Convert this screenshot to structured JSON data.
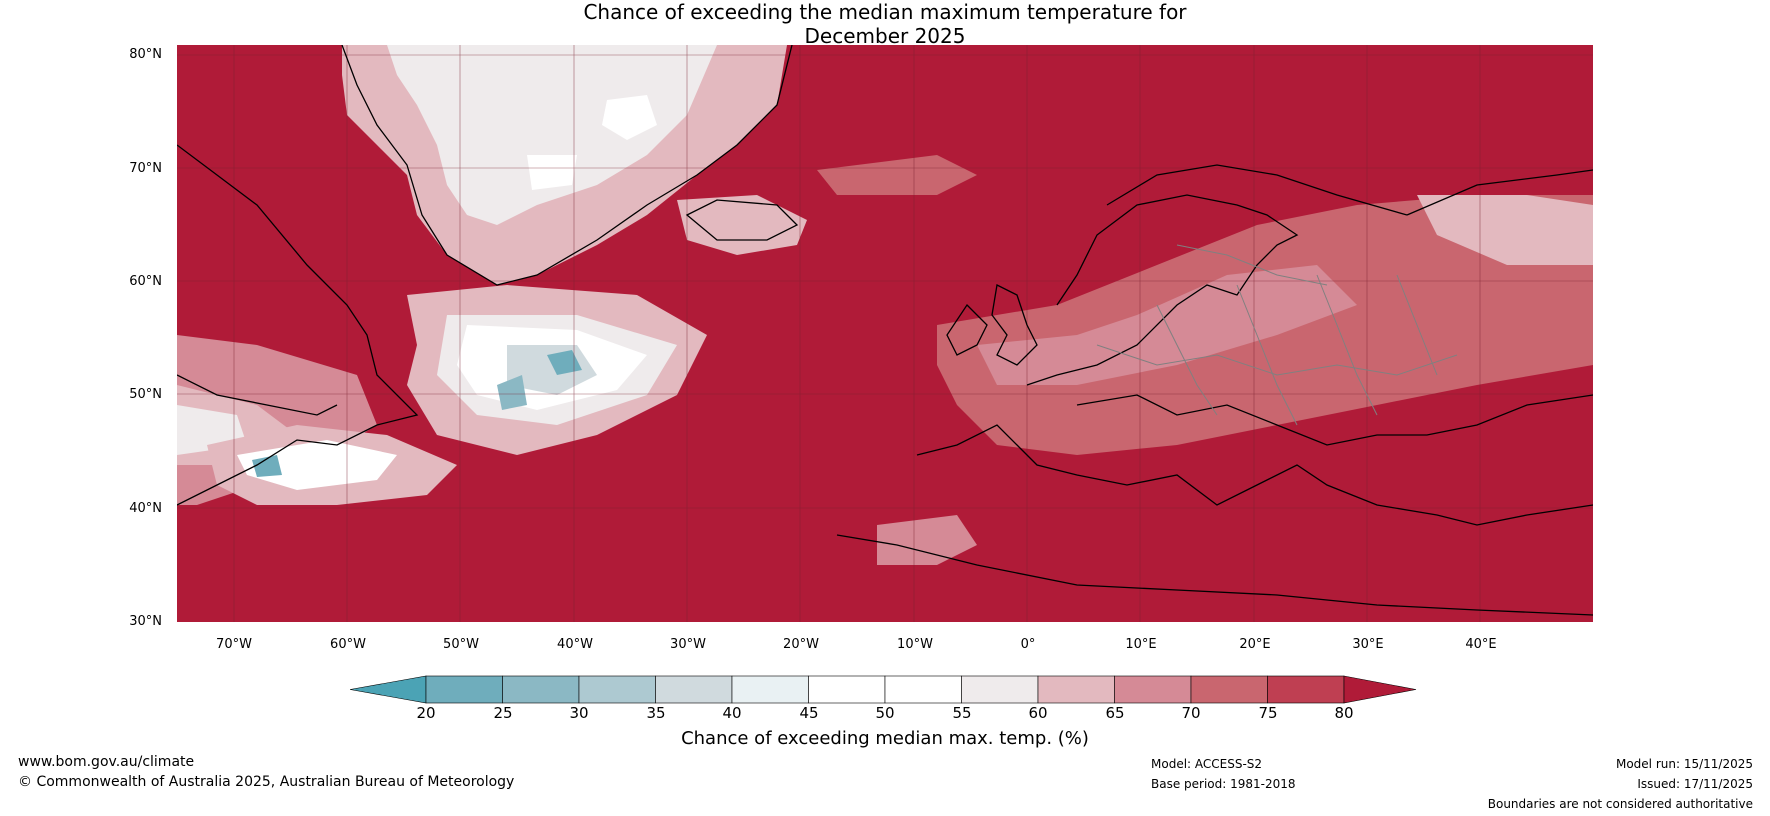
{
  "title": {
    "line1": "Chance of exceeding the median maximum temperature for",
    "line2": "December 2025"
  },
  "map": {
    "background_color": "#b01b38",
    "lat_labels": [
      "80°N",
      "70°N",
      "60°N",
      "50°N",
      "40°N",
      "30°N"
    ],
    "lon_labels": [
      "70°W",
      "60°W",
      "50°W",
      "40°W",
      "30°W",
      "20°W",
      "10°W",
      "0°",
      "10°E",
      "20°E",
      "30°E",
      "40°E"
    ]
  },
  "colorbar": {
    "ticks": [
      "20",
      "25",
      "30",
      "35",
      "40",
      "45",
      "50",
      "55",
      "60",
      "65",
      "70",
      "75",
      "80"
    ],
    "colors": [
      "#4ba3b5",
      "#6fadbc",
      "#8bb8c4",
      "#adc9d1",
      "#d0dade",
      "#e9f1f3",
      "#ffffff",
      "#ffffff",
      "#efebec",
      "#e3b9bf",
      "#d58a96",
      "#c9666f",
      "#bf3f52",
      "#b01b38"
    ],
    "label": "Chance of exceeding median max. temp. (%)"
  },
  "footer": {
    "url": "www.bom.gov.au/climate",
    "copyright": "© Commonwealth of Australia 2025, Australian Bureau of Meteorology",
    "model": "Model: ACCESS-S2",
    "base_period": "Base period: 1981-2018",
    "model_run": "Model run: 15/11/2025",
    "issued": "Issued: 17/11/2025",
    "disclaimer": "Boundaries are not considered authoritative"
  }
}
